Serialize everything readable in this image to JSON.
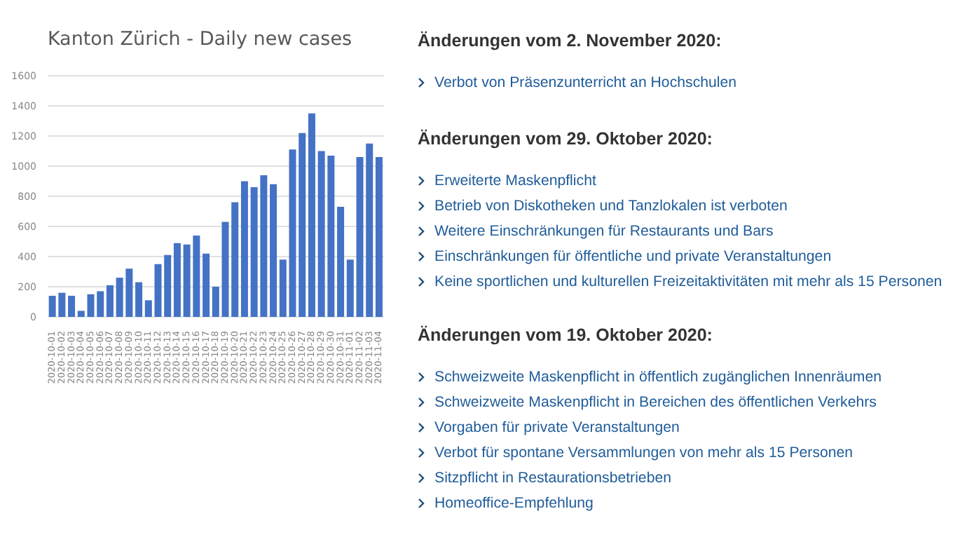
{
  "chart_data": [
    {
      "type": "bar",
      "title": "Kanton Zürich - Daily new cases",
      "categories": [
        "2020-10-01",
        "2020-10-02",
        "2020-10-03",
        "2020-10-04",
        "2020-10-05",
        "2020-10-06",
        "2020-10-07",
        "2020-10-08",
        "2020-10-09",
        "2020-10-10",
        "2020-10-11",
        "2020-10-12",
        "2020-10-13",
        "2020-10-14",
        "2020-10-15",
        "2020-10-16",
        "2020-10-17",
        "2020-10-18",
        "2020-10-19",
        "2020-10-20",
        "2020-10-21",
        "2020-10-22",
        "2020-10-23",
        "2020-10-24",
        "2020-10-25",
        "2020-10-26",
        "2020-10-27",
        "2020-10-28",
        "2020-10-29",
        "2020-10-30",
        "2020-10-31",
        "2020-11-01",
        "2020-11-02",
        "2020-11-03",
        "2020-11-04"
      ],
      "values": [
        140,
        160,
        140,
        40,
        150,
        170,
        210,
        260,
        320,
        230,
        110,
        350,
        410,
        490,
        480,
        540,
        420,
        200,
        630,
        760,
        900,
        860,
        940,
        880,
        380,
        1110,
        1220,
        1350,
        1100,
        1070,
        730,
        380,
        1060,
        1150,
        1060
      ],
      "color": "#4472c4",
      "ylim": [
        0,
        1600
      ],
      "yticks": [
        0,
        200,
        400,
        600,
        800,
        1000,
        1200,
        1400,
        1600
      ],
      "grid": "y"
    },
    {
      "type": "other",
      "title": "Änderungen vom 2. November 2020:",
      "annotations": [
        "Verbot von Präsenzunterricht an Hochschulen"
      ]
    },
    {
      "type": "other",
      "title": "Änderungen vom 29. Oktober 2020:",
      "annotations": [
        "Erweiterte Maskenpflicht",
        "Betrieb von Diskotheken und Tanzlokalen ist verboten",
        "Weitere Einschränkungen für Restaurants und Bars",
        "Einschränkungen für öffentliche und private Veranstaltungen",
        "Keine sportlichen und kulturellen Freizeitaktivitäten mit mehr als 15 Personen"
      ]
    },
    {
      "type": "other",
      "title": "Änderungen vom 19. Oktober 2020:",
      "annotations": [
        "Schweizweite Maskenpflicht in öffentlich zugänglichen Innenräumen",
        "Schweizweite Maskenpflicht in Bereichen des öffentlichen Verkehrs",
        "Vorgaben für private Veranstaltungen",
        "Verbot für spontane Versammlungen von mehr als 15 Personen",
        "Sitzpflicht in Restaurationsbetrieben",
        "Homeoffice-Empfehlung"
      ]
    }
  ]
}
